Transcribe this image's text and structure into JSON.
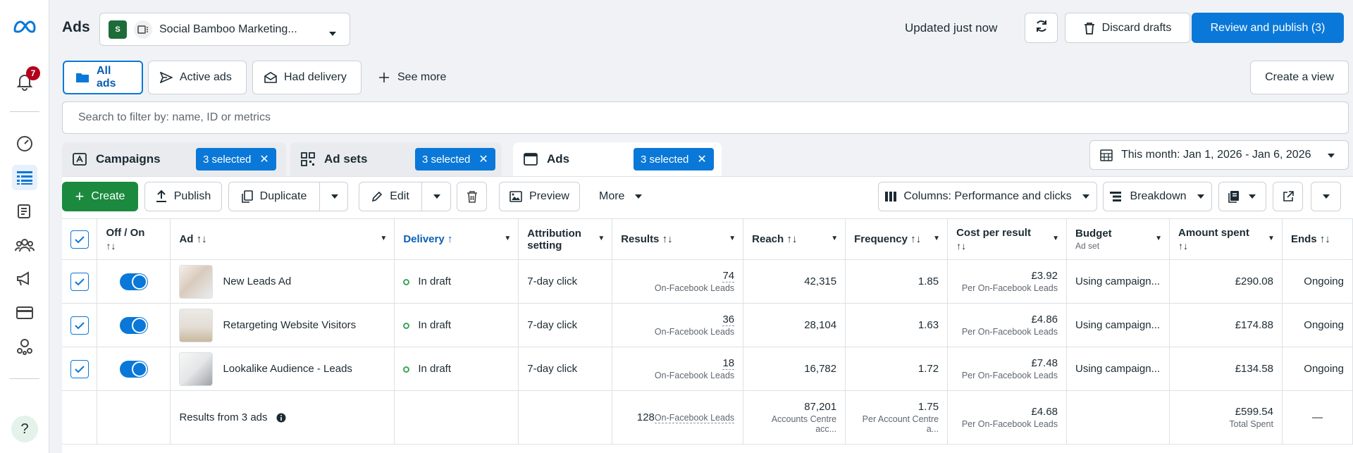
{
  "sidebar": {
    "notification_count": "7"
  },
  "header": {
    "title": "Ads",
    "account_logo_text": "S",
    "account_name": "Social Bamboo Marketing...",
    "updated": "Updated just now",
    "discard_label": "Discard drafts",
    "review_label": "Review and publish (3)"
  },
  "views": {
    "all_ads": "All ads",
    "active_ads": "Active ads",
    "had_delivery": "Had delivery",
    "see_more": "See more",
    "create_view": "Create a view"
  },
  "search": {
    "placeholder": "Search to filter by: name, ID or metrics"
  },
  "levels": {
    "campaigns": "Campaigns",
    "adsets": "Ad sets",
    "ads": "Ads",
    "selected": "3 selected",
    "date_range": "This month: Jan 1, 2026 - Jan 6, 2026"
  },
  "toolbar": {
    "create": "Create",
    "publish": "Publish",
    "duplicate": "Duplicate",
    "edit": "Edit",
    "preview": "Preview",
    "more": "More",
    "columns": "Columns: Performance and clicks",
    "breakdown": "Breakdown"
  },
  "table": {
    "headers": {
      "off_on": "Off / On",
      "ad": "Ad",
      "delivery": "Delivery",
      "attribution_1": "Attribution",
      "attribution_2": "setting",
      "results": "Results",
      "reach": "Reach",
      "frequency": "Frequency",
      "cost_per_result": "Cost per result",
      "budget": "Budget",
      "budget_sub": "Ad set",
      "amount_spent": "Amount spent",
      "ends": "Ends"
    },
    "rows": [
      {
        "name": "New Leads Ad",
        "delivery": "In draft",
        "attribution": "7-day click",
        "results": "74",
        "results_sub": "On-Facebook Leads",
        "reach": "42,315",
        "frequency": "1.85",
        "cpr": "£3.92",
        "cpr_sub": "Per On-Facebook Leads",
        "budget": "Using campaign...",
        "spent": "£290.08",
        "ends": "Ongoing"
      },
      {
        "name": "Retargeting Website Visitors",
        "delivery": "In draft",
        "attribution": "7-day click",
        "results": "36",
        "results_sub": "On-Facebook Leads",
        "reach": "28,104",
        "frequency": "1.63",
        "cpr": "£4.86",
        "cpr_sub": "Per On-Facebook Leads",
        "budget": "Using campaign...",
        "spent": "£174.88",
        "ends": "Ongoing"
      },
      {
        "name": "Lookalike Audience - Leads",
        "delivery": "In draft",
        "attribution": "7-day click",
        "results": "18",
        "results_sub": "On-Facebook Leads",
        "reach": "16,782",
        "frequency": "1.72",
        "cpr": "£7.48",
        "cpr_sub": "Per On-Facebook Leads",
        "budget": "Using campaign...",
        "spent": "£134.58",
        "ends": "Ongoing"
      }
    ],
    "summary": {
      "label": "Results from 3 ads",
      "results": "128",
      "results_sub": "On-Facebook Leads",
      "reach": "87,201",
      "reach_sub": "Accounts Centre acc...",
      "frequency": "1.75",
      "frequency_sub": "Per Account Centre a...",
      "cpr": "£4.68",
      "cpr_sub": "Per On-Facebook Leads",
      "spent": "£599.54",
      "spent_sub": "Total Spent",
      "ends": "—"
    }
  }
}
